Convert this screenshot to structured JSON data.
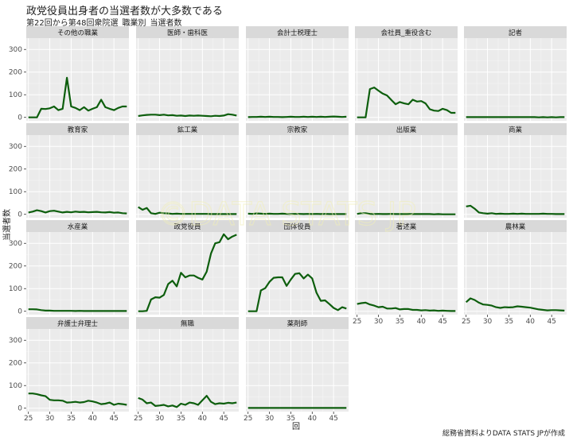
{
  "title": "政党役員出身者の当選者数が大多数である",
  "subtitle": "第22回から第48回衆院選_職業別_当選者数",
  "caption": "総務省資料よりDATA STATS JPが作成",
  "watermark": "©DATA STATS JP",
  "colors": {
    "line": "#0d5e0d",
    "panel": "#ebebeb",
    "strip": "#d9d9d9",
    "grid_major": "#ffffff",
    "grid_minor": "#f5f5f5"
  },
  "chart_data": {
    "type": "line",
    "layout": "facet_wrap",
    "ncol": 5,
    "xlabel": "回",
    "ylabel": "当選者数",
    "xlim": [
      24.5,
      48.5
    ],
    "ylim": [
      -15,
      350
    ],
    "x_ticks": [
      25,
      30,
      35,
      40,
      45
    ],
    "y_ticks": [
      0,
      100,
      200,
      300
    ],
    "x": [
      25,
      26,
      27,
      28,
      29,
      30,
      31,
      32,
      33,
      34,
      35,
      36,
      37,
      38,
      39,
      40,
      41,
      42,
      43,
      44,
      45,
      46,
      47,
      48
    ],
    "series": [
      {
        "name": "その他の職業",
        "values": [
          0,
          0,
          0,
          38,
          37,
          40,
          48,
          32,
          38,
          175,
          48,
          42,
          32,
          45,
          30,
          38,
          45,
          78,
          45,
          38,
          32,
          42,
          48,
          48
        ]
      },
      {
        "name": "医師・歯科医",
        "values": [
          6,
          9,
          11,
          12,
          12,
          10,
          12,
          9,
          10,
          7,
          8,
          6,
          8,
          7,
          8,
          7,
          6,
          5,
          7,
          6,
          8,
          14,
          12,
          8
        ]
      },
      {
        "name": "会計士税理士",
        "values": [
          1,
          2,
          2,
          3,
          2,
          3,
          2,
          2,
          1,
          2,
          3,
          2,
          2,
          3,
          2,
          3,
          2,
          3,
          2,
          3,
          4,
          3,
          2,
          3
        ]
      },
      {
        "name": "会社員_重役含む",
        "values": [
          0,
          0,
          0,
          125,
          132,
          118,
          105,
          97,
          77,
          58,
          68,
          62,
          58,
          78,
          70,
          72,
          62,
          36,
          30,
          28,
          38,
          32,
          20,
          20
        ]
      },
      {
        "name": "記者",
        "values": [
          1,
          1,
          1,
          1,
          1,
          1,
          1,
          1,
          1,
          1,
          1,
          1,
          1,
          1,
          1,
          1,
          1,
          0,
          1,
          0,
          1,
          0,
          1,
          1
        ]
      },
      {
        "name": "教育家",
        "values": [
          8,
          12,
          18,
          14,
          8,
          14,
          16,
          12,
          8,
          11,
          9,
          12,
          10,
          11,
          9,
          10,
          11,
          9,
          8,
          10,
          7,
          8,
          5,
          4
        ]
      },
      {
        "name": "鉱工業",
        "values": [
          32,
          20,
          28,
          5,
          2,
          7,
          5,
          4,
          2,
          3,
          2,
          2,
          2,
          2,
          2,
          2,
          2,
          1,
          1,
          1,
          1,
          1,
          1,
          1
        ]
      },
      {
        "name": "宗教家",
        "values": [
          3,
          2,
          4,
          3,
          2,
          3,
          2,
          2,
          3,
          2,
          1,
          2,
          2,
          1,
          2,
          1,
          2,
          1,
          2,
          1,
          1,
          1,
          1,
          1
        ]
      },
      {
        "name": "出版業",
        "values": [
          2,
          5,
          5,
          2,
          1,
          2,
          1,
          1,
          2,
          1,
          1,
          1,
          1,
          1,
          1,
          1,
          1,
          1,
          0,
          1,
          0,
          0,
          0,
          0
        ]
      },
      {
        "name": "商業",
        "values": [
          35,
          38,
          25,
          8,
          5,
          3,
          5,
          2,
          3,
          2,
          2,
          3,
          2,
          3,
          2,
          2,
          2,
          2,
          3,
          2,
          2,
          1,
          1,
          1
        ]
      },
      {
        "name": "水産業",
        "values": [
          9,
          9,
          8,
          5,
          3,
          3,
          2,
          2,
          2,
          2,
          2,
          1,
          2,
          1,
          1,
          1,
          1,
          1,
          1,
          1,
          1,
          1,
          1,
          1
        ]
      },
      {
        "name": "政党役員",
        "values": [
          0,
          0,
          2,
          52,
          62,
          60,
          72,
          120,
          135,
          110,
          170,
          150,
          158,
          158,
          148,
          140,
          175,
          255,
          300,
          305,
          340,
          318,
          330,
          338
        ]
      },
      {
        "name": "団体役員",
        "values": [
          0,
          0,
          0,
          92,
          102,
          130,
          148,
          150,
          150,
          112,
          140,
          165,
          168,
          145,
          162,
          145,
          82,
          46,
          48,
          32,
          15,
          5,
          18,
          12
        ]
      },
      {
        "name": "著述業",
        "values": [
          32,
          36,
          38,
          30,
          25,
          18,
          20,
          12,
          12,
          14,
          8,
          10,
          10,
          6,
          6,
          4,
          5,
          3,
          4,
          2,
          3,
          2,
          1,
          1
        ]
      },
      {
        "name": "農林業",
        "values": [
          40,
          57,
          50,
          38,
          30,
          28,
          25,
          18,
          15,
          18,
          17,
          18,
          22,
          20,
          18,
          16,
          12,
          8,
          6,
          4,
          5,
          5,
          4,
          3
        ]
      },
      {
        "name": "弁護士弁理士",
        "values": [
          65,
          65,
          62,
          57,
          53,
          37,
          35,
          35,
          33,
          25,
          26,
          28,
          25,
          27,
          33,
          30,
          25,
          18,
          20,
          25,
          15,
          20,
          18,
          15
        ]
      },
      {
        "name": "無職",
        "values": [
          45,
          38,
          22,
          25,
          10,
          12,
          15,
          8,
          12,
          5,
          20,
          15,
          25,
          22,
          15,
          35,
          55,
          28,
          18,
          22,
          20,
          24,
          22,
          25
        ]
      },
      {
        "name": "薬剤師",
        "values": [
          1,
          1,
          1,
          1,
          1,
          1,
          1,
          1,
          1,
          1,
          1,
          1,
          1,
          1,
          1,
          1,
          1,
          1,
          1,
          1,
          1,
          1,
          1,
          1
        ]
      }
    ]
  }
}
